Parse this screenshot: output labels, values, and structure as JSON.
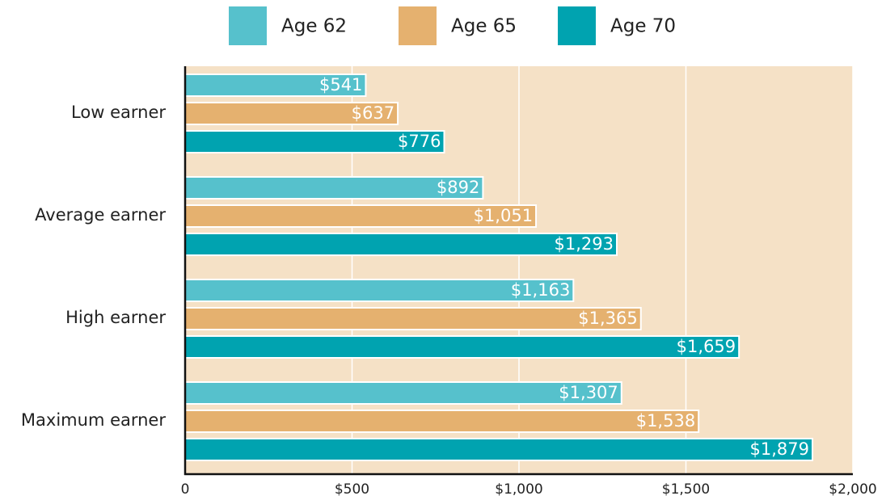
{
  "chart_data": {
    "type": "bar",
    "orientation": "horizontal",
    "categories": [
      "Low earner",
      "Average earner",
      "High earner",
      "Maximum earner"
    ],
    "series": [
      {
        "name": "Age 62",
        "color": "#56c1cc",
        "values": [
          541,
          892,
          1163,
          1307
        ],
        "value_labels": [
          "$541",
          "$892",
          "$1,163",
          "$1,307"
        ]
      },
      {
        "name": "Age 65",
        "color": "#e5b16f",
        "values": [
          637,
          1051,
          1365,
          1538
        ],
        "value_labels": [
          "$637",
          "$1,051",
          "$1,365",
          "$1,538"
        ]
      },
      {
        "name": "Age 70",
        "color": "#00a3b0",
        "values": [
          776,
          1293,
          1659,
          1879
        ],
        "value_labels": [
          "$776",
          "$1,293",
          "$1,659",
          "$1,879"
        ]
      }
    ],
    "xlim": [
      0,
      2000
    ],
    "xticks": [
      0,
      {
        "value": 500,
        "label": "$500"
      },
      {
        "value": 1000,
        "label": "$1,000"
      },
      {
        "value": 1500,
        "label": "$1,500"
      },
      {
        "value": 2000,
        "label": "$2,000"
      }
    ],
    "grid": true,
    "legend": "top"
  }
}
